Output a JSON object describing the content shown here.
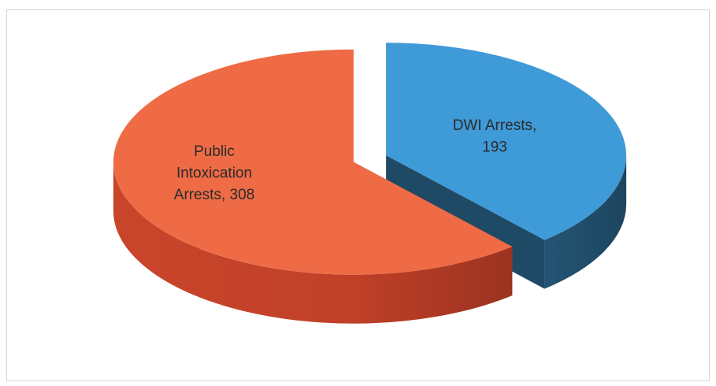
{
  "chart_data": {
    "type": "pie",
    "style": "3d-exploded",
    "categories": [
      "DWI Arrests",
      "Public Intoxication Arrests"
    ],
    "values": [
      193,
      308
    ],
    "colors": [
      "#3f9ad8",
      "#ee6b45"
    ],
    "data_labels": [
      {
        "lines": [
          "DWI Arrests,",
          "193"
        ]
      },
      {
        "lines": [
          "Public",
          "Intoxication",
          "Arrests, 308"
        ]
      }
    ],
    "legend": "none",
    "grid": false
  }
}
